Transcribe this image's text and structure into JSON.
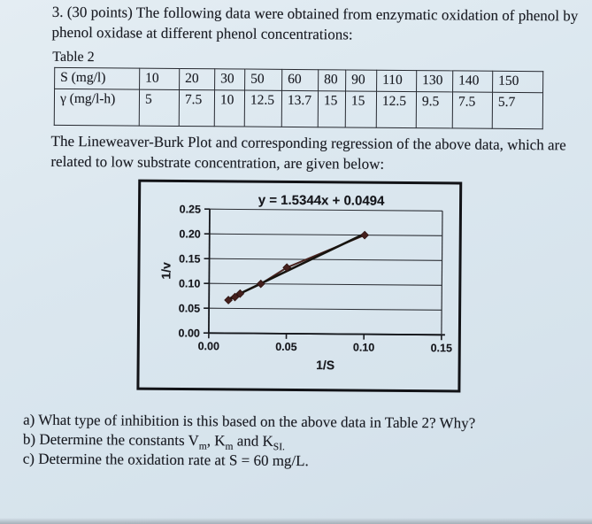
{
  "page": {
    "problem_statement_lines": [
      "3. (30 points) The following data were obtained from enzymatic oxidation of phenol by",
      "phenol oxidase at different phenol concentrations:"
    ],
    "plot_intro_lines": [
      "The Lineweaver-Burk Plot and corresponding regression of the above data, which are",
      "related to low substrate concentration, are given below:"
    ]
  },
  "table": {
    "label": "Table 2",
    "rows": [
      {
        "header": "S (mg/l)",
        "values": [
          "10",
          "20",
          "30",
          "50",
          "60",
          "80",
          "90",
          "110",
          "130",
          "140",
          "150"
        ]
      },
      {
        "header": "γ (mg/l-h)",
        "values": [
          "5",
          "7.5",
          "10",
          "12.5",
          "13.7",
          "15",
          "15",
          "12.5",
          "9.5",
          "7.5",
          "5.7"
        ]
      }
    ]
  },
  "chart_data": {
    "type": "scatter",
    "title": "y = 1.5344x + 0.0494",
    "xlabel": "1/S",
    "ylabel": "1/v",
    "xlim": [
      0,
      0.15
    ],
    "ylim": [
      0,
      0.25
    ],
    "xticks": [
      0,
      0.05,
      0.1,
      0.15
    ],
    "yticks": [
      0,
      0.05,
      0.1,
      0.15,
      0.2,
      0.25
    ],
    "grid": "horizontal",
    "legend": "none",
    "marker_color": "#45201d",
    "series_line_color": "#4a2420",
    "trend_color": "#17140f",
    "series": [
      {
        "name": "1/v vs 1/S data points",
        "points": [
          {
            "x": 0.0125,
            "y": 0.0667
          },
          {
            "x": 0.0167,
            "y": 0.073
          },
          {
            "x": 0.02,
            "y": 0.08
          },
          {
            "x": 0.0333,
            "y": 0.1
          },
          {
            "x": 0.05,
            "y": 0.1333
          },
          {
            "x": 0.1,
            "y": 0.2
          }
        ]
      },
      {
        "name": "linear regression trendline",
        "equation": "y = 1.5344x + 0.0494",
        "slope": 1.5344,
        "intercept": 0.0494,
        "x_start": 0.0125,
        "x_end": 0.1
      }
    ]
  },
  "questions": {
    "a": "a) What type of inhibition is this based on the above data in Table 2? Why?",
    "b_parts": [
      "b) Determine the constants V",
      "m",
      ", K",
      "m",
      " and K",
      "SI."
    ],
    "c": "c) Determine the oxidation rate at S = 60 mg/L."
  }
}
